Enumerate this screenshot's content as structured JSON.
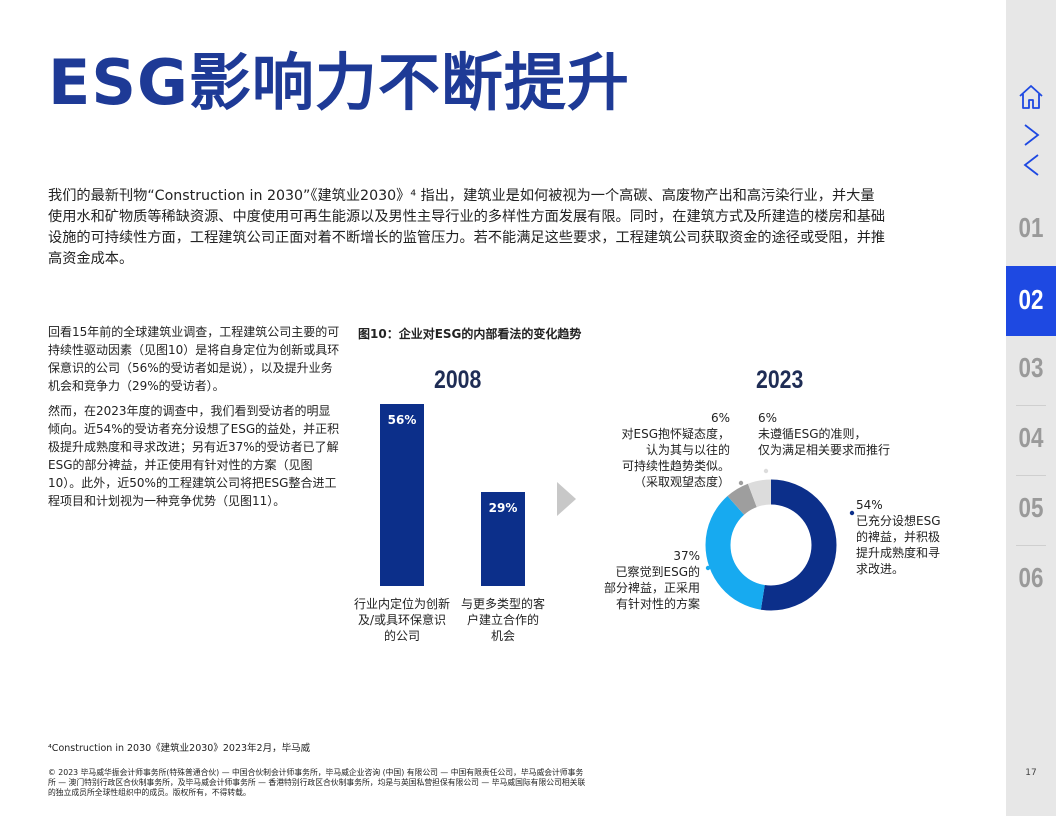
{
  "title": "ESG影响力不断提升",
  "intro": "我们的最新刊物“Construction in 2030”《建筑业2030》⁴ 指出，建筑业是如何被视为一个高碳、高废物产出和高污染行业，并大量使用水和矿物质等稀缺资源、中度使用可再生能源以及男性主导行业的多样性方面发展有限。同时，在建筑方式及所建造的楼房和基础设施的可持续性方面，工程建筑公司正面对着不断增长的监管压力。若不能满足这些要求，工程建筑公司获取资金的途径或受阻，并推高资金成本。",
  "left_paragraphs": [
    "回看15年前的全球建筑业调查，工程建筑公司主要的可持续性驱动因素（见图10）是将自身定位为创新或具环保意识的公司（56%的受访者如是说），以及提升业务机会和竞争力（29%的受访者）。",
    "然而，在2023年度的调查中，我们看到受访者的明显倾向。近54%的受访者充分设想了ESG的益处，并正积极提升成熟度和寻求改进；另有近37%的受访者已了解ESG的部分裨益，并正使用有针对性的方案（见图10）。此外，近50%的工程建筑公司将把ESG整合进工程项目和计划视为一种竞争优势（见图11）。"
  ],
  "figure_title": "图10：企业对ESG的内部看法的变化趋势",
  "chart_data": [
    {
      "type": "bar",
      "title": "2008",
      "categories": [
        "行业内定位为创新及/或具环保意识的公司",
        "与更多类型的客户建立合作的机会"
      ],
      "category_lines": [
        [
          "行业内定位为创新",
          "及/或具环保意识",
          "的公司"
        ],
        [
          "与更多类型的客",
          "户建立合作的",
          "机会"
        ]
      ],
      "values": [
        56,
        29
      ],
      "value_labels": [
        "56%",
        "29%"
      ],
      "ylim": [
        0,
        56
      ],
      "color": "#0c2f8a"
    },
    {
      "type": "pie",
      "title": "2023",
      "donut": true,
      "slices": [
        {
          "value": 54,
          "label": "54%",
          "text": [
            "已充分设想ESG",
            "的裨益，并积极",
            "提升成熟度和寻",
            "求改进。"
          ],
          "color": "#0c2f8a"
        },
        {
          "value": 37,
          "label": "37%",
          "text": [
            "已察觉到ESG的",
            "部分裨益，正采用",
            "有针对性的方案"
          ],
          "color": "#17aaf0"
        },
        {
          "value": 6,
          "label": "6%",
          "text": [
            "对ESG抱怀疑态度，",
            "认为其与以往的",
            "可持续性趋势类似。",
            "（采取观望态度）"
          ],
          "color": "#9e9e9e"
        },
        {
          "value": 6,
          "label": "6%",
          "text": [
            "未遵循ESG的准则，",
            "仅为满足相关要求而推行"
          ],
          "color": "#dcdcdc"
        }
      ]
    }
  ],
  "footnote": "⁴Construction in 2030《建筑业2030》2023年2月，毕马威",
  "copyright": "© 2023 毕马威华振会计师事务所(特殊普通合伙) — 中国合伙制会计师事务所，毕马威企业咨询 (中国) 有限公司 — 中国有限责任公司，毕马威会计师事务所 — 澳门特别行政区合伙制事务所，及毕马威会计师事务所 — 香港特别行政区合伙制事务所，均是与英国私营担保有限公司 — 毕马威国际有限公司相关联的独立成员所全球性组织中的成员。版权所有，不得转载。",
  "sidebar": {
    "icons": [
      "home-icon",
      "next-arrow-icon",
      "prev-arrow-icon"
    ],
    "sections": [
      "01",
      "02",
      "03",
      "04",
      "05",
      "06"
    ],
    "active": "02",
    "active_color": "#1e49e2"
  },
  "page_number": "17"
}
